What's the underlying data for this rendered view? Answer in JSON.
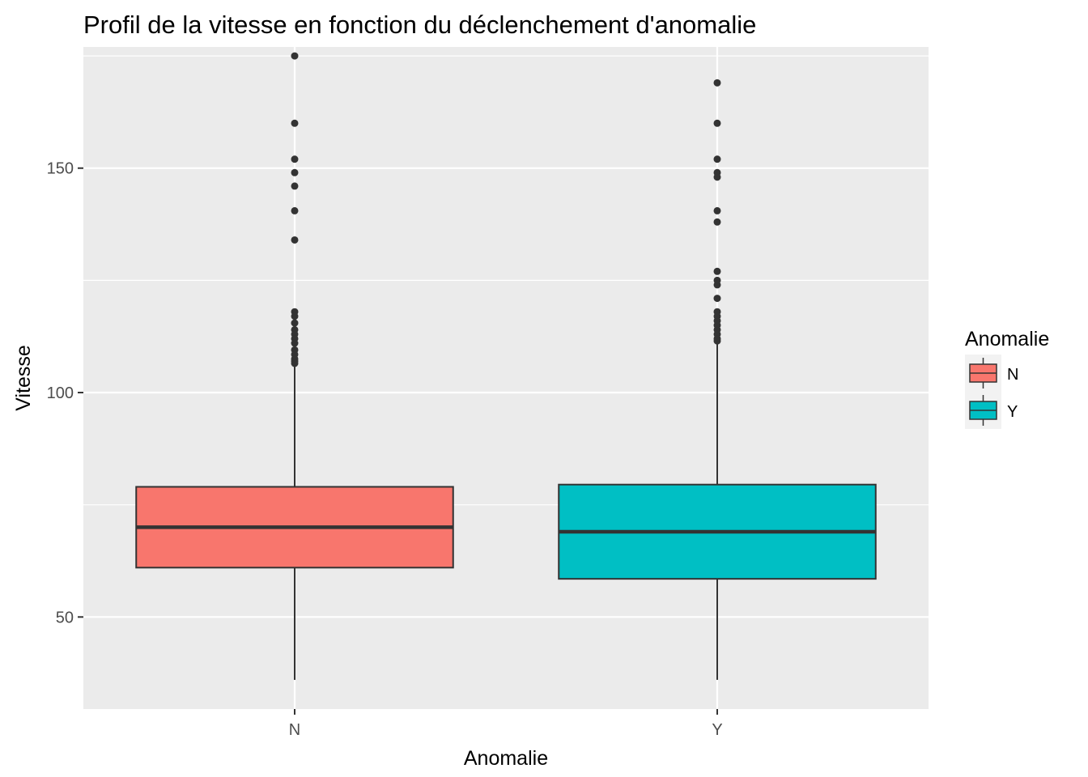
{
  "chart_data": {
    "type": "boxplot",
    "title": "Profil de la vitesse en fonction du déclenchement d'anomalie",
    "xlabel": "Anomalie",
    "ylabel": "Vitesse",
    "ylim": [
      29.5,
      177
    ],
    "y_ticks": [
      50,
      100,
      150
    ],
    "grid": true,
    "legend": {
      "title": "Anomalie",
      "position": "right"
    },
    "categories": [
      "N",
      "Y"
    ],
    "series": [
      {
        "name": "N",
        "color": "#F8766D",
        "whisker_low": 36,
        "q1": 61,
        "median": 70,
        "q3": 79,
        "whisker_high": 106,
        "outliers": [
          175,
          160,
          152,
          149,
          146,
          140.5,
          134,
          118,
          117,
          115.5,
          114,
          113,
          112,
          111,
          109.5,
          108.5,
          107.5,
          107,
          106.5
        ]
      },
      {
        "name": "Y",
        "color": "#00BFC4",
        "whisker_low": 36,
        "q1": 58.5,
        "median": 69,
        "q3": 79.5,
        "whisker_high": 111,
        "outliers": [
          169,
          160,
          152,
          149,
          148,
          140.5,
          138,
          127,
          125,
          124,
          121,
          118,
          117,
          116,
          115,
          114,
          113,
          112,
          111.5
        ]
      }
    ]
  }
}
